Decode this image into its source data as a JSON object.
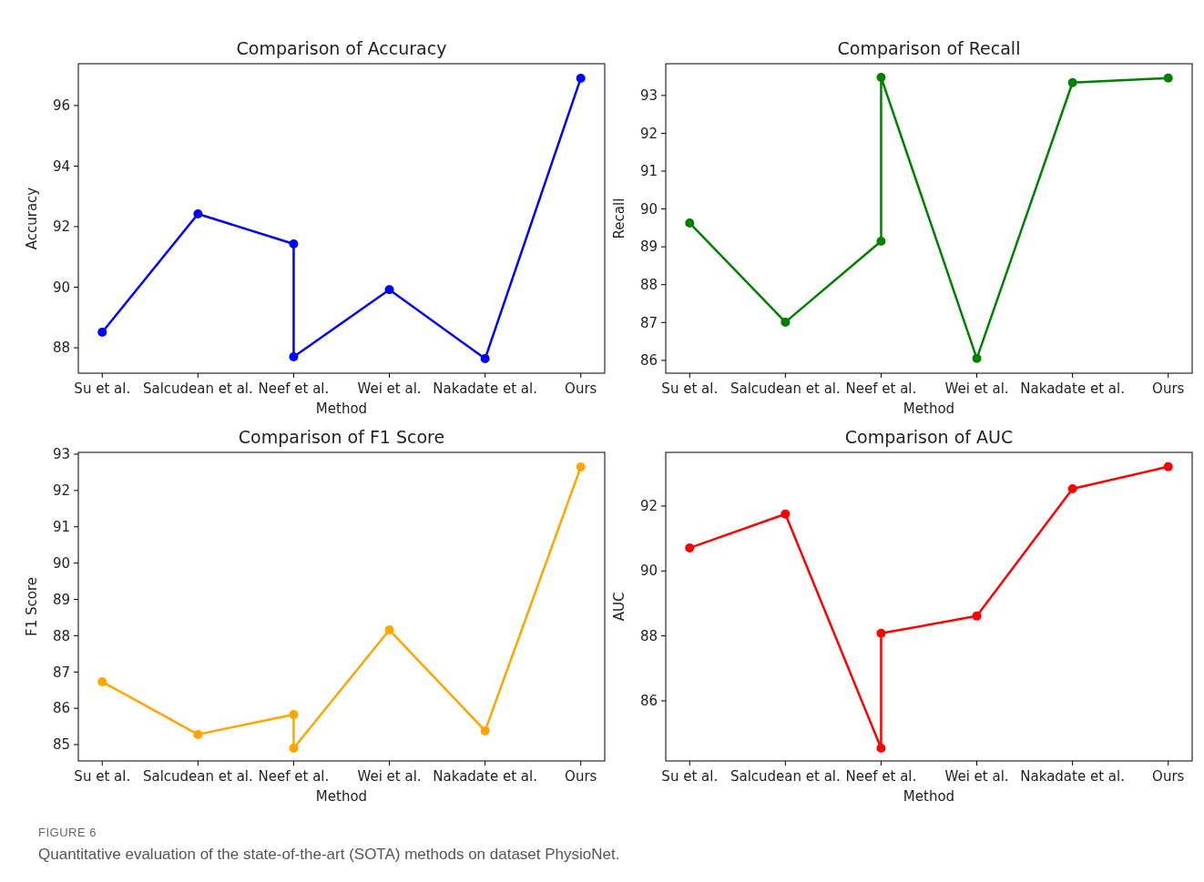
{
  "chart_data": [
    {
      "type": "line",
      "title": "Comparison of Accuracy",
      "xlabel": "Method",
      "ylabel": "Accuracy",
      "categories": [
        "Su et al.",
        "Salcudean et al.",
        "Neef et al.",
        "Wei et al.",
        "Nakadate et al.",
        "Ours"
      ],
      "ylim": [
        87.16,
        97.38
      ],
      "yticks": [
        88,
        90,
        92,
        94,
        96
      ],
      "grid": false,
      "marker": "circle",
      "line_style": "solid",
      "series": [
        {
          "color": "#0000ff",
          "x": [
            "Su et al.",
            "Salcudean et al.",
            "Neef et al.",
            "Neef et al.",
            "Wei et al.",
            "Nakadate et al.",
            "Ours"
          ],
          "values": [
            88.51,
            92.42,
            91.43,
            87.7,
            89.92,
            87.64,
            96.9
          ]
        }
      ]
    },
    {
      "type": "line",
      "title": "Comparison of Recall",
      "xlabel": "Method",
      "ylabel": "Recall",
      "categories": [
        "Su et al.",
        "Salcudean et al.",
        "Neef et al.",
        "Wei et al.",
        "Nakadate et al.",
        "Ours"
      ],
      "ylim": [
        85.66,
        93.84
      ],
      "yticks": [
        86,
        87,
        88,
        89,
        90,
        91,
        92,
        93
      ],
      "grid": false,
      "marker": "circle",
      "line_style": "solid",
      "series": [
        {
          "color": "#008000",
          "x": [
            "Su et al.",
            "Salcudean et al.",
            "Neef et al.",
            "Neef et al.",
            "Wei et al.",
            "Nakadate et al.",
            "Ours"
          ],
          "values": [
            89.63,
            87.01,
            89.15,
            93.48,
            86.05,
            93.34,
            93.46
          ]
        }
      ]
    },
    {
      "type": "line",
      "title": "Comparison of F1 Score",
      "xlabel": "Method",
      "ylabel": "F1 Score",
      "categories": [
        "Su et al.",
        "Salcudean et al.",
        "Neef et al.",
        "Wei et al.",
        "Nakadate et al.",
        "Ours"
      ],
      "ylim": [
        84.55,
        93.05
      ],
      "yticks": [
        85,
        86,
        87,
        88,
        89,
        90,
        91,
        92,
        93
      ],
      "grid": false,
      "marker": "circle",
      "line_style": "solid",
      "series": [
        {
          "color": "#ffa500",
          "x": [
            "Su et al.",
            "Salcudean et al.",
            "Neef et al.",
            "Neef et al.",
            "Wei et al.",
            "Nakadate et al.",
            "Ours"
          ],
          "values": [
            86.73,
            85.28,
            85.83,
            84.9,
            88.16,
            85.38,
            92.65
          ]
        }
      ]
    },
    {
      "type": "line",
      "title": "Comparison of AUC",
      "xlabel": "Method",
      "ylabel": "AUC",
      "categories": [
        "Su et al.",
        "Salcudean et al.",
        "Neef et al.",
        "Wei et al.",
        "Nakadate et al.",
        "Ours"
      ],
      "ylim": [
        84.15,
        93.65
      ],
      "yticks": [
        86,
        88,
        90,
        92
      ],
      "grid": false,
      "marker": "circle",
      "line_style": "solid",
      "series": [
        {
          "color": "#ff0000",
          "x": [
            "Su et al.",
            "Salcudean et al.",
            "Neef et al.",
            "Neef et al.",
            "Wei et al.",
            "Nakadate et al.",
            "Ours"
          ],
          "values": [
            90.71,
            91.75,
            84.54,
            88.08,
            88.61,
            92.53,
            93.21
          ]
        }
      ],
      "annotations": [
        "FIGURE 6",
        "Quantitative evaluation of the state-of-the-art (SOTA) methods on dataset PhysioNet."
      ]
    }
  ]
}
